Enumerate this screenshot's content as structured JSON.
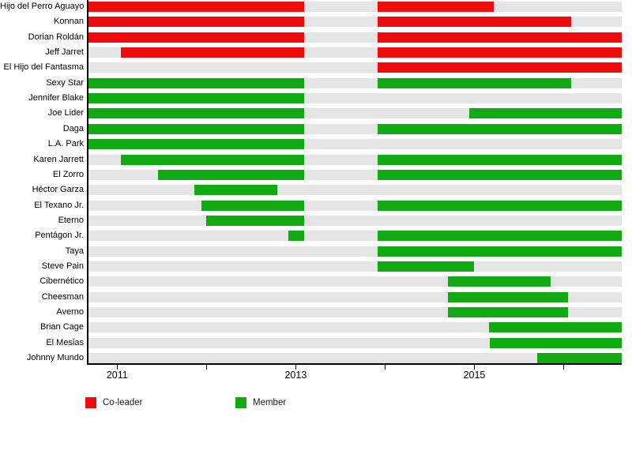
{
  "colors": {
    "co_leader": "#ee0c0c",
    "member": "#12aa12",
    "row_background": "#e5e5e5",
    "axis": "#000000"
  },
  "chart_data": {
    "type": "timeline",
    "title": "",
    "xlabel": "",
    "ylabel": "",
    "grid": false,
    "legend_position": "bottom",
    "x_axis": {
      "range": [
        2010.67,
        2016.65
      ],
      "ticks": [
        2011,
        2012,
        2013,
        2014,
        2015,
        2016
      ],
      "labeled_ticks": [
        2011,
        2013,
        2015
      ]
    },
    "legend": [
      {
        "label": "Co-leader",
        "role": "co-leader"
      },
      {
        "label": "Member",
        "role": "member"
      }
    ],
    "rows": [
      {
        "name": "Hijo del Perro Aguayo",
        "segments": [
          {
            "role": "co-leader",
            "start": 2010.67,
            "end": 2013.09
          },
          {
            "role": "co-leader",
            "start": 2013.92,
            "end": 2015.22
          }
        ]
      },
      {
        "name": "Konnan",
        "segments": [
          {
            "role": "co-leader",
            "start": 2010.67,
            "end": 2013.09
          },
          {
            "role": "co-leader",
            "start": 2013.92,
            "end": 2016.08
          }
        ]
      },
      {
        "name": "Dorian Roldán",
        "segments": [
          {
            "role": "co-leader",
            "start": 2010.67,
            "end": 2013.09
          },
          {
            "role": "co-leader",
            "start": 2013.92,
            "end": 2016.65
          }
        ]
      },
      {
        "name": "Jeff Jarret",
        "segments": [
          {
            "role": "co-leader",
            "start": 2011.04,
            "end": 2013.09
          },
          {
            "role": "co-leader",
            "start": 2013.92,
            "end": 2016.65
          }
        ]
      },
      {
        "name": "El Hijo del Fantasma",
        "segments": [
          {
            "role": "co-leader",
            "start": 2013.92,
            "end": 2016.65
          }
        ]
      },
      {
        "name": "Sexy Star",
        "segments": [
          {
            "role": "member",
            "start": 2010.67,
            "end": 2013.09
          },
          {
            "role": "member",
            "start": 2013.92,
            "end": 2016.08
          }
        ]
      },
      {
        "name": "Jennifer Blake",
        "segments": [
          {
            "role": "member",
            "start": 2010.67,
            "end": 2013.09
          }
        ]
      },
      {
        "name": "Joe Lider",
        "segments": [
          {
            "role": "member",
            "start": 2010.67,
            "end": 2013.09
          },
          {
            "role": "member",
            "start": 2014.94,
            "end": 2016.65
          }
        ]
      },
      {
        "name": "Daga",
        "segments": [
          {
            "role": "member",
            "start": 2010.67,
            "end": 2013.09
          },
          {
            "role": "member",
            "start": 2013.92,
            "end": 2016.65
          }
        ]
      },
      {
        "name": "L.A. Park",
        "segments": [
          {
            "role": "member",
            "start": 2010.67,
            "end": 2013.09
          }
        ]
      },
      {
        "name": "Karen Jarrett",
        "segments": [
          {
            "role": "member",
            "start": 2011.04,
            "end": 2013.09
          },
          {
            "role": "member",
            "start": 2013.92,
            "end": 2016.65
          }
        ]
      },
      {
        "name": "El Zorro",
        "segments": [
          {
            "role": "member",
            "start": 2011.46,
            "end": 2013.09
          },
          {
            "role": "member",
            "start": 2013.92,
            "end": 2016.65
          }
        ]
      },
      {
        "name": "Héctor Garza",
        "segments": [
          {
            "role": "member",
            "start": 2011.86,
            "end": 2012.79
          }
        ]
      },
      {
        "name": "El Texano Jr.",
        "segments": [
          {
            "role": "member",
            "start": 2011.94,
            "end": 2013.09
          },
          {
            "role": "member",
            "start": 2013.92,
            "end": 2016.65
          }
        ]
      },
      {
        "name": "Eterno",
        "segments": [
          {
            "role": "member",
            "start": 2012.0,
            "end": 2013.09
          }
        ]
      },
      {
        "name": "Pentágon Jr.",
        "segments": [
          {
            "role": "member",
            "start": 2012.92,
            "end": 2013.09
          },
          {
            "role": "member",
            "start": 2013.92,
            "end": 2016.65
          }
        ]
      },
      {
        "name": "Taya",
        "segments": [
          {
            "role": "member",
            "start": 2013.92,
            "end": 2016.65
          }
        ]
      },
      {
        "name": "Steve Pain",
        "segments": [
          {
            "role": "member",
            "start": 2013.92,
            "end": 2015.0
          }
        ]
      },
      {
        "name": "Cibernético",
        "segments": [
          {
            "role": "member",
            "start": 2014.7,
            "end": 2015.85
          }
        ]
      },
      {
        "name": "Cheesman",
        "segments": [
          {
            "role": "member",
            "start": 2014.7,
            "end": 2016.05
          }
        ]
      },
      {
        "name": "Averno",
        "segments": [
          {
            "role": "member",
            "start": 2014.7,
            "end": 2016.05
          }
        ]
      },
      {
        "name": "Brian Cage",
        "segments": [
          {
            "role": "member",
            "start": 2015.16,
            "end": 2016.65
          }
        ]
      },
      {
        "name": "El Mesias",
        "segments": [
          {
            "role": "member",
            "start": 2015.17,
            "end": 2016.65
          }
        ]
      },
      {
        "name": "Johnny Mundo",
        "segments": [
          {
            "role": "member",
            "start": 2015.7,
            "end": 2016.65
          }
        ]
      }
    ]
  }
}
